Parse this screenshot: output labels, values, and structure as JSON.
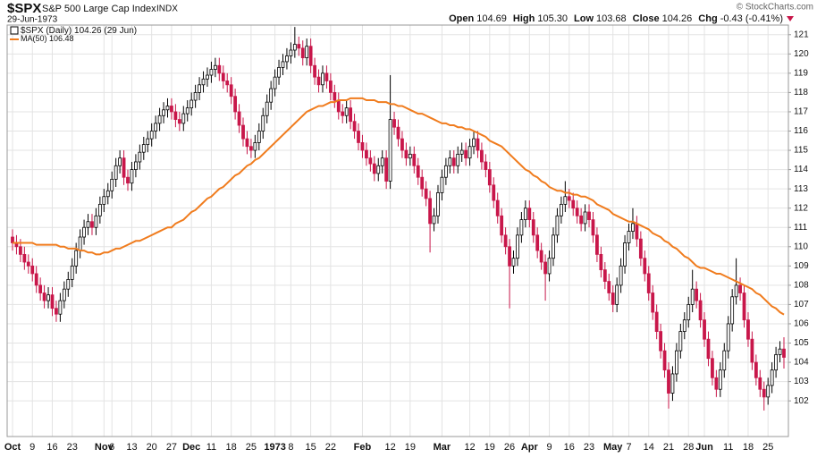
{
  "chart_data": {
    "type": "candlestick",
    "title": "$SPX",
    "subtitle": "S&P 500 Large Cap Index",
    "exchange": "INDX",
    "date": "29-Jun-1973",
    "source": "© StockCharts.com",
    "quote": [
      {
        "label": "Open",
        "value": "104.69"
      },
      {
        "label": "High",
        "value": "105.30"
      },
      {
        "label": "Low",
        "value": "103.68"
      },
      {
        "label": "Close",
        "value": "104.26"
      },
      {
        "label": "Chg",
        "value": "-0.43 (-0.41%)"
      }
    ],
    "legend": {
      "name": "$SPX (Daily)",
      "date": "(29 Jun)"
    },
    "categories": [
      "Oct",
      null,
      null,
      null,
      null,
      "9",
      null,
      null,
      null,
      null,
      "16",
      null,
      null,
      null,
      null,
      "23",
      null,
      null,
      null,
      null,
      null,
      null,
      null,
      "Nov",
      null,
      "6",
      null,
      null,
      null,
      null,
      "13",
      null,
      null,
      null,
      null,
      "20",
      null,
      null,
      null,
      null,
      "27",
      null,
      null,
      null,
      null,
      "Dec",
      null,
      null,
      null,
      null,
      "11",
      null,
      null,
      null,
      null,
      "18",
      null,
      null,
      null,
      null,
      "25",
      null,
      null,
      null,
      null,
      null,
      "1973",
      null,
      null,
      null,
      "8",
      null,
      null,
      null,
      null,
      "15",
      null,
      null,
      null,
      null,
      "22",
      null,
      null,
      null,
      null,
      null,
      null,
      null,
      "Feb",
      null,
      null,
      null,
      null,
      null,
      null,
      "12",
      null,
      null,
      null,
      null,
      "19",
      null,
      null,
      null,
      null,
      null,
      null,
      null,
      "Mar",
      null,
      null,
      null,
      null,
      null,
      null,
      "12",
      null,
      null,
      null,
      null,
      "19",
      null,
      null,
      null,
      null,
      "26",
      null,
      null,
      null,
      null,
      "Apr",
      null,
      null,
      null,
      null,
      "9",
      null,
      null,
      null,
      null,
      "16",
      null,
      null,
      null,
      null,
      "23",
      null,
      null,
      null,
      null,
      null,
      "May",
      null,
      null,
      null,
      "7",
      null,
      null,
      null,
      null,
      "14",
      null,
      null,
      null,
      null,
      "21",
      null,
      null,
      null,
      null,
      "28",
      null,
      null,
      null,
      "Jun",
      null,
      null,
      null,
      null,
      null,
      "11",
      null,
      null,
      null,
      null,
      "18",
      null,
      null,
      null,
      null,
      "25",
      null,
      null,
      null,
      null
    ],
    "open": [
      110.5,
      110.2,
      110.0,
      109.6,
      109.2,
      109.0,
      108.6,
      108.0,
      107.6,
      107.2,
      107.5,
      106.8,
      106.5,
      107.2,
      107.8,
      108.3,
      109.0,
      109.8,
      110.5,
      111.0,
      111.3,
      111.0,
      111.6,
      112.2,
      112.6,
      112.9,
      113.5,
      114.2,
      114.6,
      113.6,
      113.3,
      114.0,
      114.4,
      114.9,
      115.3,
      115.6,
      116.0,
      116.4,
      116.8,
      117.1,
      117.3,
      117.0,
      116.6,
      116.4,
      116.9,
      117.2,
      117.6,
      118.0,
      118.4,
      118.7,
      118.9,
      119.2,
      119.4,
      119.0,
      118.6,
      118.4,
      117.8,
      117.0,
      116.3,
      115.6,
      115.2,
      115.0,
      115.4,
      116.0,
      116.8,
      117.5,
      118.2,
      118.8,
      119.3,
      119.6,
      119.9,
      120.2,
      120.5,
      120.3,
      119.8,
      120.4,
      119.4,
      118.8,
      118.4,
      119.0,
      118.6,
      118.0,
      117.6,
      117.0,
      116.8,
      117.2,
      116.5,
      116.0,
      115.4,
      115.0,
      114.6,
      114.3,
      113.8,
      114.2,
      114.6,
      113.4,
      116.6,
      116.2,
      115.6,
      115.0,
      114.6,
      114.8,
      114.2,
      113.6,
      113.0,
      112.5,
      111.2,
      111.6,
      112.8,
      113.6,
      114.2,
      114.6,
      114.2,
      114.8,
      115.0,
      114.6,
      115.2,
      115.6,
      115.0,
      114.4,
      114.0,
      113.2,
      112.4,
      111.6,
      110.6,
      110.0,
      109.0,
      109.4,
      110.6,
      111.4,
      112.0,
      111.4,
      110.6,
      109.8,
      109.2,
      108.6,
      109.4,
      110.6,
      111.6,
      112.2,
      112.6,
      112.4,
      112.0,
      111.6,
      111.2,
      111.8,
      111.4,
      110.6,
      109.6,
      108.8,
      108.2,
      107.6,
      107.0,
      108.0,
      109.0,
      110.2,
      110.8,
      111.2,
      110.4,
      109.4,
      108.6,
      107.6,
      106.6,
      105.6,
      104.6,
      103.6,
      102.4,
      103.4,
      104.6,
      105.6,
      106.2,
      107.0,
      107.8,
      107.2,
      106.2,
      105.2,
      104.2,
      103.2,
      102.6,
      103.6,
      104.6,
      106.0,
      107.4,
      108.0,
      107.6,
      106.2,
      105.2,
      104.0,
      103.2,
      102.6,
      102.2,
      102.8,
      103.6,
      104.4,
      104.69
    ],
    "high": [
      110.9,
      110.6,
      110.4,
      110.0,
      109.6,
      109.4,
      109.0,
      108.4,
      108.0,
      107.9,
      107.9,
      107.2,
      107.6,
      108.2,
      108.7,
      109.4,
      110.2,
      110.9,
      111.4,
      111.7,
      111.7,
      112.0,
      112.6,
      113.0,
      113.3,
      113.9,
      114.6,
      115.0,
      115.0,
      114.0,
      114.4,
      114.8,
      115.3,
      115.7,
      116.0,
      116.4,
      116.8,
      117.2,
      117.5,
      117.7,
      117.7,
      117.4,
      117.0,
      117.3,
      117.6,
      118.0,
      118.4,
      118.8,
      119.1,
      119.3,
      119.6,
      119.8,
      119.8,
      119.4,
      119.0,
      118.8,
      118.2,
      117.4,
      116.7,
      116.0,
      115.6,
      115.8,
      116.4,
      117.2,
      117.9,
      118.6,
      119.2,
      119.7,
      120.0,
      120.3,
      120.6,
      121.4,
      120.9,
      120.7,
      120.8,
      120.8,
      119.8,
      119.2,
      119.4,
      119.4,
      119.0,
      118.4,
      118.0,
      117.4,
      117.6,
      117.6,
      116.9,
      116.4,
      115.8,
      115.4,
      115.0,
      114.7,
      114.6,
      115.0,
      115.0,
      118.9,
      117.0,
      116.6,
      116.0,
      115.4,
      115.2,
      115.2,
      114.6,
      114.0,
      113.4,
      112.9,
      112.0,
      113.2,
      114.0,
      114.6,
      115.0,
      115.0,
      115.2,
      115.4,
      115.4,
      115.6,
      116.0,
      116.0,
      115.4,
      114.8,
      114.4,
      113.6,
      112.8,
      112.0,
      111.0,
      110.4,
      109.8,
      111.0,
      111.8,
      112.4,
      112.4,
      111.8,
      111.0,
      110.2,
      109.6,
      109.8,
      111.0,
      112.0,
      112.6,
      113.4,
      113.0,
      112.8,
      112.4,
      112.0,
      112.2,
      112.2,
      111.8,
      111.0,
      110.0,
      109.2,
      108.6,
      108.0,
      108.4,
      109.4,
      110.6,
      111.2,
      112.0,
      111.6,
      110.8,
      109.8,
      109.0,
      108.0,
      107.0,
      106.0,
      105.0,
      104.0,
      103.8,
      105.0,
      106.0,
      106.6,
      107.4,
      108.8,
      108.2,
      107.6,
      106.6,
      105.6,
      104.6,
      103.6,
      104.0,
      105.0,
      106.4,
      107.8,
      109.4,
      108.4,
      108.0,
      106.6,
      105.6,
      104.4,
      103.6,
      103.0,
      103.2,
      104.0,
      104.8,
      105.1,
      105.3
    ],
    "low": [
      109.8,
      109.6,
      109.2,
      108.8,
      108.6,
      108.2,
      107.6,
      107.2,
      106.8,
      106.8,
      106.4,
      106.1,
      106.1,
      106.8,
      107.4,
      107.9,
      108.6,
      109.4,
      110.1,
      110.6,
      110.6,
      110.6,
      111.2,
      111.8,
      112.2,
      112.5,
      113.1,
      113.8,
      113.2,
      112.9,
      112.9,
      113.6,
      114.0,
      114.5,
      114.9,
      115.2,
      115.6,
      116.0,
      116.4,
      116.7,
      116.6,
      116.2,
      116.0,
      116.0,
      116.5,
      116.8,
      117.2,
      117.6,
      118.0,
      118.3,
      118.5,
      118.8,
      118.6,
      118.2,
      118.0,
      117.4,
      116.6,
      115.9,
      115.2,
      114.8,
      114.6,
      114.6,
      115.0,
      115.6,
      116.4,
      117.1,
      117.8,
      118.4,
      118.9,
      119.2,
      119.5,
      119.8,
      119.9,
      119.4,
      119.4,
      119.0,
      118.4,
      118.0,
      118.0,
      118.2,
      117.6,
      117.2,
      116.6,
      116.4,
      116.4,
      116.1,
      115.6,
      115.0,
      114.6,
      114.2,
      113.9,
      113.4,
      113.4,
      113.8,
      113.0,
      113.0,
      115.8,
      115.2,
      114.6,
      114.2,
      114.2,
      113.8,
      113.2,
      112.6,
      112.1,
      109.7,
      110.8,
      111.2,
      112.4,
      113.2,
      113.8,
      113.8,
      113.8,
      114.4,
      114.2,
      114.2,
      114.8,
      114.6,
      114.0,
      113.6,
      112.8,
      112.0,
      111.2,
      110.2,
      109.6,
      106.8,
      108.6,
      109.0,
      110.2,
      111.0,
      111.0,
      110.2,
      109.4,
      108.8,
      107.2,
      108.2,
      109.0,
      110.2,
      111.2,
      111.8,
      112.0,
      111.6,
      111.2,
      110.8,
      110.8,
      111.0,
      110.2,
      109.2,
      108.4,
      107.8,
      107.2,
      106.6,
      106.6,
      107.6,
      108.6,
      109.8,
      110.4,
      110.0,
      109.0,
      108.2,
      107.2,
      106.2,
      105.2,
      104.2,
      103.2,
      101.6,
      102.0,
      103.0,
      104.2,
      105.2,
      105.8,
      106.6,
      106.8,
      105.8,
      104.8,
      103.8,
      102.8,
      102.2,
      102.2,
      103.2,
      104.2,
      105.6,
      107.0,
      107.2,
      105.8,
      104.8,
      103.6,
      102.8,
      102.2,
      101.5,
      101.8,
      102.4,
      103.2,
      104.0,
      103.68
    ],
    "close": [
      110.2,
      110.0,
      109.6,
      109.2,
      109.0,
      108.6,
      108.0,
      107.6,
      107.2,
      107.5,
      106.8,
      106.5,
      107.2,
      107.8,
      108.3,
      109.0,
      109.8,
      110.5,
      111.0,
      111.3,
      111.0,
      111.6,
      112.2,
      112.6,
      112.9,
      113.5,
      114.2,
      114.6,
      113.6,
      113.3,
      114.0,
      114.4,
      114.9,
      115.3,
      115.6,
      116.0,
      116.4,
      116.8,
      117.1,
      117.3,
      117.0,
      116.6,
      116.4,
      116.9,
      117.2,
      117.6,
      118.0,
      118.4,
      118.7,
      118.9,
      119.2,
      119.4,
      119.0,
      118.6,
      118.4,
      117.8,
      117.0,
      116.3,
      115.6,
      115.2,
      115.0,
      115.4,
      116.0,
      116.8,
      117.5,
      118.2,
      118.8,
      119.3,
      119.6,
      119.9,
      120.2,
      120.5,
      120.3,
      119.8,
      120.4,
      119.4,
      118.8,
      118.4,
      119.0,
      118.6,
      118.0,
      117.6,
      117.0,
      116.8,
      117.2,
      116.5,
      116.0,
      115.4,
      115.0,
      114.6,
      114.3,
      113.8,
      114.2,
      114.6,
      113.4,
      116.6,
      116.2,
      115.6,
      115.0,
      114.6,
      114.8,
      114.2,
      113.6,
      113.0,
      112.5,
      111.2,
      111.6,
      112.8,
      113.6,
      114.2,
      114.6,
      114.2,
      114.8,
      115.0,
      114.6,
      115.2,
      115.6,
      115.0,
      114.4,
      114.0,
      113.2,
      112.4,
      111.6,
      110.6,
      110.0,
      109.0,
      109.4,
      110.6,
      111.4,
      112.0,
      111.4,
      110.6,
      109.8,
      109.2,
      108.6,
      109.4,
      110.6,
      111.6,
      112.2,
      112.6,
      112.4,
      112.0,
      111.6,
      111.2,
      111.8,
      111.4,
      110.6,
      109.6,
      108.8,
      108.2,
      107.6,
      107.0,
      108.0,
      109.0,
      110.2,
      110.8,
      111.2,
      110.4,
      109.4,
      108.6,
      107.6,
      106.6,
      105.6,
      104.6,
      103.6,
      102.4,
      103.4,
      104.6,
      105.6,
      106.2,
      107.0,
      107.8,
      107.2,
      106.2,
      105.2,
      104.2,
      103.2,
      102.6,
      103.6,
      104.6,
      106.0,
      107.4,
      108.0,
      107.6,
      106.2,
      105.2,
      104.0,
      103.2,
      102.6,
      102.2,
      102.8,
      103.6,
      104.4,
      104.69,
      104.26
    ],
    "up_color": "#000000",
    "down_color": "#c8174a",
    "ma": {
      "name": "MA(50)",
      "color": "#f07c1e",
      "values": [
        110.2,
        110.2,
        110.2,
        110.2,
        110.2,
        110.2,
        110.1,
        110.1,
        110.1,
        110.1,
        110.1,
        110.1,
        110.0,
        110.0,
        109.9,
        109.9,
        109.9,
        109.8,
        109.8,
        109.7,
        109.7,
        109.6,
        109.6,
        109.7,
        109.7,
        109.8,
        109.9,
        109.9,
        110.0,
        110.1,
        110.2,
        110.3,
        110.3,
        110.4,
        110.5,
        110.6,
        110.7,
        110.8,
        110.9,
        111.0,
        111.0,
        111.2,
        111.3,
        111.4,
        111.6,
        111.8,
        111.9,
        112.1,
        112.3,
        112.5,
        112.6,
        112.8,
        113.0,
        113.1,
        113.3,
        113.5,
        113.7,
        113.8,
        114.0,
        114.2,
        114.3,
        114.5,
        114.6,
        114.8,
        115.0,
        115.2,
        115.4,
        115.6,
        115.8,
        116.0,
        116.2,
        116.4,
        116.6,
        116.8,
        117.0,
        117.1,
        117.2,
        117.3,
        117.3,
        117.4,
        117.5,
        117.5,
        117.6,
        117.6,
        117.6,
        117.7,
        117.7,
        117.7,
        117.7,
        117.6,
        117.6,
        117.6,
        117.5,
        117.5,
        117.5,
        117.4,
        117.4,
        117.3,
        117.3,
        117.2,
        117.1,
        117.0,
        116.9,
        116.9,
        116.8,
        116.7,
        116.6,
        116.5,
        116.4,
        116.4,
        116.3,
        116.3,
        116.2,
        116.2,
        116.1,
        116.1,
        116.0,
        115.9,
        115.8,
        115.7,
        115.5,
        115.4,
        115.3,
        115.2,
        115.0,
        114.8,
        114.6,
        114.4,
        114.2,
        114.0,
        113.9,
        113.7,
        113.6,
        113.4,
        113.3,
        113.1,
        113.0,
        112.9,
        112.9,
        112.8,
        112.8,
        112.7,
        112.7,
        112.6,
        112.6,
        112.5,
        112.4,
        112.2,
        112.1,
        112.0,
        111.9,
        111.7,
        111.6,
        111.5,
        111.4,
        111.3,
        111.3,
        111.2,
        111.1,
        111.0,
        110.9,
        110.7,
        110.6,
        110.5,
        110.3,
        110.2,
        110.0,
        109.9,
        109.7,
        109.5,
        109.4,
        109.2,
        109.0,
        108.9,
        108.9,
        108.8,
        108.7,
        108.6,
        108.6,
        108.5,
        108.4,
        108.3,
        108.2,
        108.1,
        108.0,
        107.9,
        107.8,
        107.6,
        107.5,
        107.3,
        107.1,
        106.9,
        106.8,
        106.6,
        106.48
      ]
    },
    "ylim": [
      100.15,
      121.5
    ],
    "yticks": [
      102,
      103,
      104,
      105,
      106,
      107,
      108,
      109,
      110,
      111,
      112,
      113,
      114,
      115,
      116,
      117,
      118,
      119,
      120,
      121
    ],
    "grid": true
  }
}
